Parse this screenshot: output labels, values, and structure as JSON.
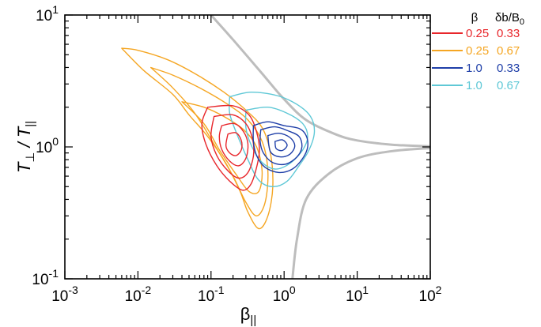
{
  "chart_data": {
    "type": "line",
    "x_scale": "log",
    "y_scale": "log",
    "xlim": [
      0.001,
      100
    ],
    "ylim": [
      0.1,
      10
    ],
    "xlabel": {
      "base": "β",
      "sub": "||"
    },
    "ylabel": {
      "base": "T",
      "sub1": "⊥",
      "mid": " / T",
      "sub2": "||"
    },
    "x_ticks": [
      {
        "value": 0.001,
        "base": "10",
        "exp": "-3"
      },
      {
        "value": 0.01,
        "base": "10",
        "exp": "-2"
      },
      {
        "value": 0.1,
        "base": "10",
        "exp": "-1"
      },
      {
        "value": 1,
        "base": "10",
        "exp": "0"
      },
      {
        "value": 10,
        "base": "10",
        "exp": "1"
      },
      {
        "value": 100,
        "base": "10",
        "exp": "2"
      }
    ],
    "y_ticks": [
      {
        "value": 0.1,
        "base": "10",
        "exp": "-1"
      },
      {
        "value": 1,
        "base": "10",
        "exp": "0"
      },
      {
        "value": 10,
        "base": "10",
        "exp": "1"
      }
    ],
    "grid": false,
    "legend": {
      "placement": "top-right, outside plot",
      "header_beta": "β",
      "header_db": {
        "base": "δb/B",
        "sub": "0"
      },
      "entries": [
        {
          "beta": "0.25",
          "db": "0.33",
          "color": "#e8262b"
        },
        {
          "beta": "0.25",
          "db": "0.67",
          "color": "#f5a623"
        },
        {
          "beta": "1.0",
          "db": "0.33",
          "color": "#1f3fa8"
        },
        {
          "beta": "1.0",
          "db": "0.67",
          "color": "#5fc8d6"
        }
      ]
    },
    "threshold_curves": {
      "color": "#bdbdbd",
      "upper": [
        [
          0.1,
          10
        ],
        [
          0.2,
          6.5
        ],
        [
          0.5,
          3.6
        ],
        [
          1,
          2.3
        ],
        [
          2,
          1.6
        ],
        [
          5,
          1.25
        ],
        [
          10,
          1.12
        ],
        [
          30,
          1.04
        ],
        [
          100,
          1.01
        ]
      ],
      "lower": [
        [
          1.3,
          0.1
        ],
        [
          1.5,
          0.2
        ],
        [
          2,
          0.4
        ],
        [
          4,
          0.62
        ],
        [
          10,
          0.82
        ],
        [
          30,
          0.93
        ],
        [
          100,
          0.98
        ]
      ]
    },
    "series": [
      {
        "color": "#f5a623",
        "contours": [
          [
            [
              0.006,
              5.6
            ],
            [
              0.012,
              3.8
            ],
            [
              0.03,
              2.5
            ],
            [
              0.05,
              1.75
            ],
            [
              0.09,
              1.2
            ],
            [
              0.16,
              0.75
            ],
            [
              0.25,
              0.46
            ],
            [
              0.32,
              0.32
            ],
            [
              0.45,
              0.24
            ],
            [
              0.6,
              0.3
            ],
            [
              0.7,
              0.5
            ],
            [
              0.65,
              0.9
            ],
            [
              0.5,
              1.4
            ],
            [
              0.3,
              1.9
            ],
            [
              0.15,
              2.6
            ],
            [
              0.06,
              3.6
            ],
            [
              0.025,
              4.6
            ],
            [
              0.01,
              5.4
            ],
            [
              0.006,
              5.6
            ]
          ],
          [
            [
              0.015,
              4.0
            ],
            [
              0.03,
              2.8
            ],
            [
              0.06,
              1.8
            ],
            [
              0.11,
              1.05
            ],
            [
              0.2,
              0.6
            ],
            [
              0.3,
              0.38
            ],
            [
              0.42,
              0.3
            ],
            [
              0.55,
              0.38
            ],
            [
              0.6,
              0.65
            ],
            [
              0.5,
              1.1
            ],
            [
              0.32,
              1.6
            ],
            [
              0.17,
              2.1
            ],
            [
              0.07,
              2.8
            ],
            [
              0.03,
              3.5
            ],
            [
              0.015,
              4.0
            ]
          ],
          [
            [
              0.04,
              2.2
            ],
            [
              0.08,
              1.5
            ],
            [
              0.13,
              0.95
            ],
            [
              0.22,
              0.62
            ],
            [
              0.33,
              0.46
            ],
            [
              0.45,
              0.46
            ],
            [
              0.5,
              0.65
            ],
            [
              0.42,
              1.0
            ],
            [
              0.28,
              1.35
            ],
            [
              0.15,
              1.7
            ],
            [
              0.08,
              2.0
            ],
            [
              0.04,
              2.2
            ]
          ]
        ]
      },
      {
        "color": "#5fc8d6",
        "contours": [
          [
            [
              0.18,
              2.4
            ],
            [
              0.35,
              2.6
            ],
            [
              0.8,
              2.45
            ],
            [
              1.5,
              2.1
            ],
            [
              2.3,
              1.7
            ],
            [
              2.6,
              1.3
            ],
            [
              2.2,
              0.95
            ],
            [
              1.6,
              0.72
            ],
            [
              1.1,
              0.55
            ],
            [
              0.7,
              0.5
            ],
            [
              0.45,
              0.56
            ],
            [
              0.32,
              0.8
            ],
            [
              0.22,
              1.3
            ],
            [
              0.18,
              1.8
            ],
            [
              0.18,
              2.4
            ]
          ],
          [
            [
              0.3,
              1.9
            ],
            [
              0.6,
              2.0
            ],
            [
              1.1,
              1.8
            ],
            [
              1.8,
              1.5
            ],
            [
              2.1,
              1.2
            ],
            [
              1.8,
              0.95
            ],
            [
              1.2,
              0.75
            ],
            [
              0.75,
              0.68
            ],
            [
              0.48,
              0.78
            ],
            [
              0.35,
              1.05
            ],
            [
              0.3,
              1.4
            ],
            [
              0.3,
              1.9
            ]
          ]
        ]
      },
      {
        "color": "#e8262b",
        "contours": [
          [
            [
              0.09,
              2.0
            ],
            [
              0.2,
              2.05
            ],
            [
              0.33,
              1.75
            ],
            [
              0.42,
              1.3
            ],
            [
              0.46,
              0.95
            ],
            [
              0.42,
              0.7
            ],
            [
              0.35,
              0.52
            ],
            [
              0.27,
              0.47
            ],
            [
              0.18,
              0.55
            ],
            [
              0.12,
              0.72
            ],
            [
              0.085,
              1.05
            ],
            [
              0.075,
              1.5
            ],
            [
              0.09,
              2.0
            ]
          ],
          [
            [
              0.11,
              1.7
            ],
            [
              0.2,
              1.75
            ],
            [
              0.3,
              1.5
            ],
            [
              0.37,
              1.15
            ],
            [
              0.38,
              0.85
            ],
            [
              0.32,
              0.64
            ],
            [
              0.24,
              0.58
            ],
            [
              0.17,
              0.66
            ],
            [
              0.12,
              0.86
            ],
            [
              0.1,
              1.2
            ],
            [
              0.11,
              1.7
            ]
          ],
          [
            [
              0.14,
              1.45
            ],
            [
              0.21,
              1.5
            ],
            [
              0.28,
              1.3
            ],
            [
              0.32,
              1.05
            ],
            [
              0.3,
              0.82
            ],
            [
              0.24,
              0.72
            ],
            [
              0.18,
              0.78
            ],
            [
              0.14,
              0.96
            ],
            [
              0.13,
              1.2
            ],
            [
              0.14,
              1.45
            ]
          ],
          [
            [
              0.17,
              1.25
            ],
            [
              0.22,
              1.28
            ],
            [
              0.26,
              1.12
            ],
            [
              0.26,
              0.95
            ],
            [
              0.22,
              0.86
            ],
            [
              0.18,
              0.9
            ],
            [
              0.16,
              1.02
            ],
            [
              0.17,
              1.25
            ]
          ]
        ]
      },
      {
        "color": "#1f3fa8",
        "contours": [
          [
            [
              0.38,
              1.45
            ],
            [
              0.6,
              1.55
            ],
            [
              1.0,
              1.45
            ],
            [
              1.6,
              1.38
            ],
            [
              2.0,
              1.22
            ],
            [
              2.1,
              1.0
            ],
            [
              1.8,
              0.82
            ],
            [
              1.3,
              0.68
            ],
            [
              0.85,
              0.64
            ],
            [
              0.55,
              0.7
            ],
            [
              0.42,
              0.86
            ],
            [
              0.38,
              1.1
            ],
            [
              0.38,
              1.45
            ]
          ],
          [
            [
              0.48,
              1.35
            ],
            [
              0.75,
              1.42
            ],
            [
              1.15,
              1.32
            ],
            [
              1.6,
              1.2
            ],
            [
              1.75,
              1.0
            ],
            [
              1.5,
              0.84
            ],
            [
              1.05,
              0.74
            ],
            [
              0.7,
              0.76
            ],
            [
              0.52,
              0.9
            ],
            [
              0.47,
              1.1
            ],
            [
              0.48,
              1.35
            ]
          ],
          [
            [
              0.6,
              1.22
            ],
            [
              0.85,
              1.27
            ],
            [
              1.2,
              1.18
            ],
            [
              1.4,
              1.02
            ],
            [
              1.2,
              0.88
            ],
            [
              0.88,
              0.84
            ],
            [
              0.65,
              0.92
            ],
            [
              0.6,
              1.22
            ]
          ],
          [
            [
              0.75,
              1.1
            ],
            [
              0.95,
              1.13
            ],
            [
              1.1,
              1.03
            ],
            [
              0.95,
              0.94
            ],
            [
              0.78,
              0.97
            ],
            [
              0.75,
              1.1
            ]
          ]
        ]
      }
    ]
  }
}
